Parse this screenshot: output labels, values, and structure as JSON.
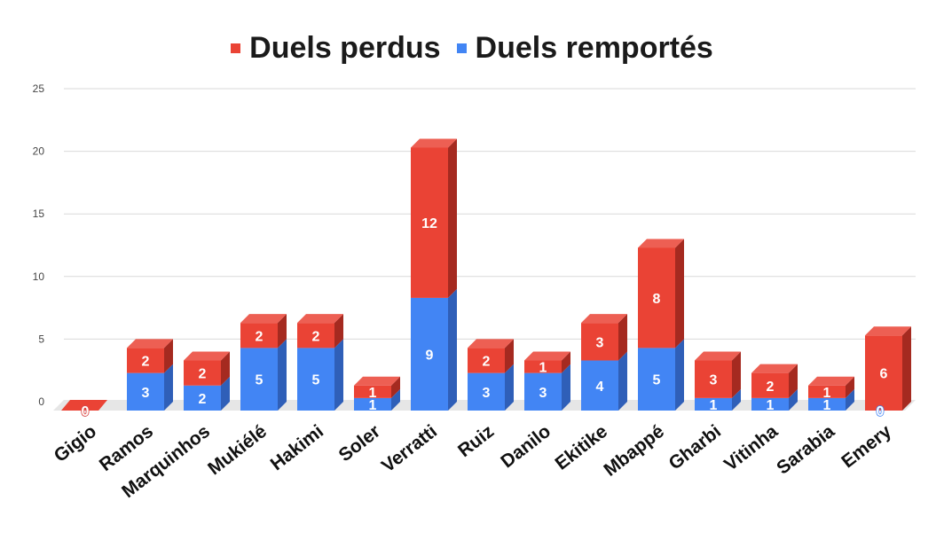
{
  "chart_data": {
    "type": "bar",
    "stacked": true,
    "style": "3d",
    "categories": [
      "Gigio",
      "Ramos",
      "Marquinhos",
      "Mukiélé",
      "Hakimi",
      "Soler",
      "Verratti",
      "Ruiz",
      "Danilo",
      "Ekitike",
      "Mbappé",
      "Gharbi",
      "Vitinha",
      "Sarabia",
      "Emery"
    ],
    "series": [
      {
        "name": "Duels remportés",
        "color": "#4285f4",
        "side_color": "#2f5fb8",
        "values": [
          0,
          3,
          2,
          5,
          5,
          1,
          9,
          3,
          3,
          4,
          5,
          1,
          1,
          1,
          0
        ]
      },
      {
        "name": "Duels perdus",
        "color": "#ea4335",
        "side_color": "#a52a20",
        "values": [
          0,
          2,
          2,
          2,
          2,
          1,
          12,
          2,
          1,
          3,
          8,
          3,
          2,
          1,
          6
        ]
      }
    ],
    "legend_order": [
      "Duels perdus",
      "Duels remportés"
    ],
    "legend_position": "top",
    "ylim": [
      0,
      25
    ],
    "yticks": [
      "0",
      "5",
      "10",
      "15",
      "20",
      "25"
    ],
    "grid": true,
    "title": "",
    "xlabel": "",
    "ylabel": ""
  }
}
